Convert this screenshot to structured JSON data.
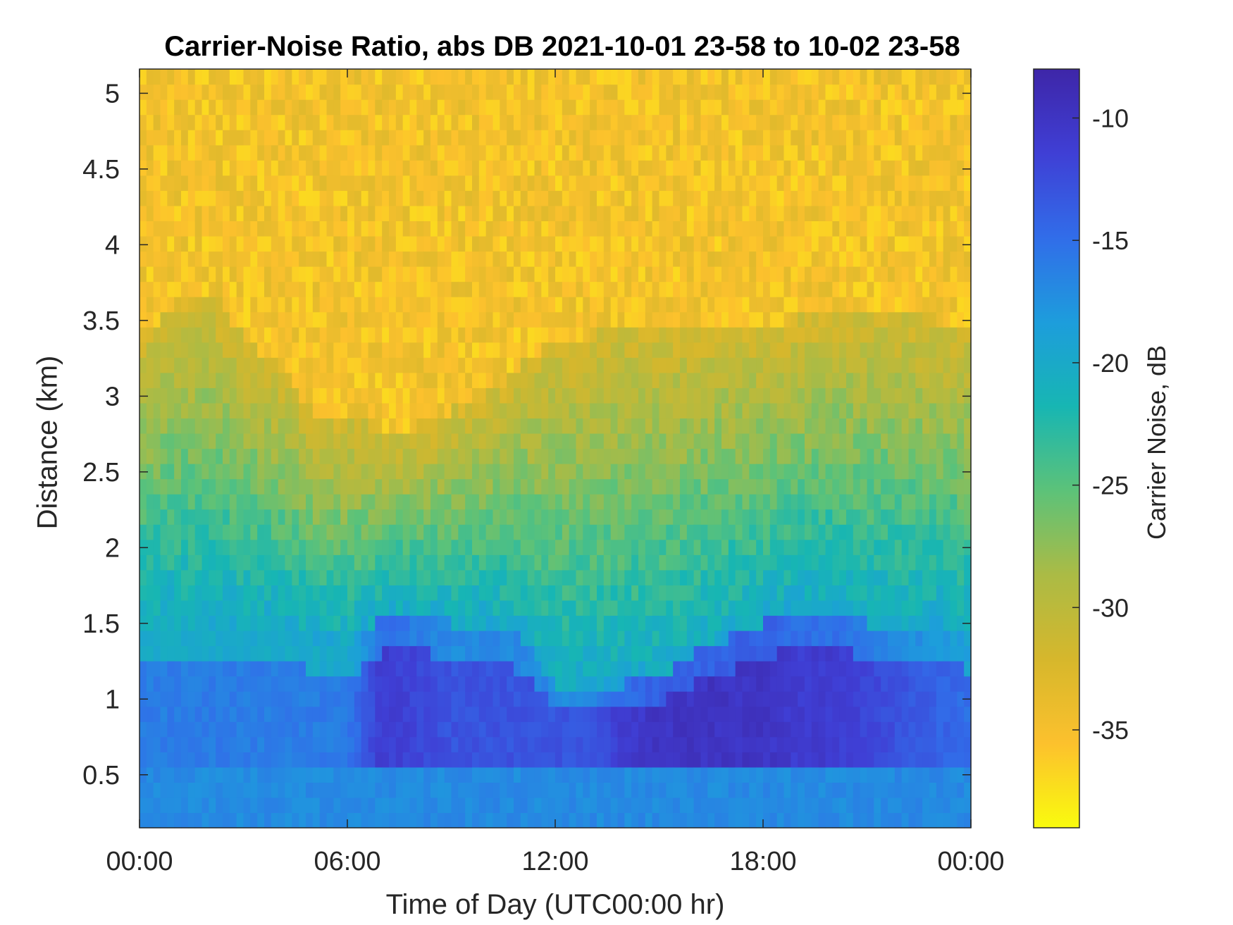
{
  "title": "Carrier-Noise Ratio, abs DB 2021-10-01 23-58 to 10-02 23-58",
  "chart_data": {
    "type": "heatmap",
    "title": "Carrier-Noise Ratio, abs DB 2021-10-01 23-58 to 10-02 23-58",
    "xlabel": "Time of Day (UTC00:00 hr)",
    "ylabel": "Distance (km)",
    "x_ticks": [
      {
        "hour": 0,
        "label": "00:00"
      },
      {
        "hour": 6,
        "label": "06:00"
      },
      {
        "hour": 12,
        "label": "12:00"
      },
      {
        "hour": 18,
        "label": "18:00"
      },
      {
        "hour": 24,
        "label": "00:00"
      }
    ],
    "xlim_hours": [
      0,
      24
    ],
    "y_ticks": [
      0.5,
      1,
      1.5,
      2,
      2.5,
      3,
      3.5,
      4,
      4.5,
      5
    ],
    "ylim_km": [
      0.15,
      5.16
    ],
    "colorbar": {
      "label": "Carrier Noise, dB",
      "ticks": [
        -10,
        -15,
        -20,
        -25,
        -30,
        -35
      ],
      "clim": [
        -39,
        -8
      ],
      "colormap": "parula",
      "colors": [
        "#f9fb0e",
        "#fcc12d",
        "#d6b72c",
        "#abbb45",
        "#5cc279",
        "#17b6b3",
        "#1d9ddc",
        "#316de9",
        "#3f3fd5",
        "#3e26a8"
      ]
    },
    "profile": {
      "hours": [
        0,
        1,
        2,
        3,
        4,
        5,
        6,
        7,
        8,
        9,
        10,
        11,
        12,
        13,
        14,
        15,
        16,
        17,
        18,
        19,
        20,
        21,
        22,
        23,
        24
      ],
      "signal_top_km": [
        3.4,
        3.6,
        3.7,
        3.4,
        3.2,
        2.9,
        2.9,
        2.8,
        2.8,
        2.9,
        3.0,
        3.2,
        3.4,
        3.4,
        3.5,
        3.5,
        3.5,
        3.5,
        3.5,
        3.5,
        3.6,
        3.6,
        3.6,
        3.5,
        3.5
      ],
      "strong_top_km": [
        1.5,
        1.5,
        1.5,
        1.5,
        1.5,
        1.4,
        1.35,
        1.55,
        1.55,
        1.5,
        1.5,
        1.4,
        1.1,
        1.1,
        1.1,
        1.15,
        1.3,
        1.4,
        1.5,
        1.6,
        1.6,
        1.5,
        1.5,
        1.5,
        1.4
      ],
      "core_db": [
        -16,
        -16,
        -16,
        -16,
        -16,
        -16,
        -16,
        -11,
        -12,
        -13,
        -13,
        -13,
        -13,
        -13,
        -11,
        -10,
        -10,
        -10,
        -10,
        -11,
        -11,
        -12,
        -13,
        -14,
        -15
      ],
      "notes": "Yellow noise (~-35 dB) above signal_top_km; cyan/green aerosol layers between; blue high-CNR layer below strong_top_km, darkest near 0.8-1.1 km."
    }
  }
}
